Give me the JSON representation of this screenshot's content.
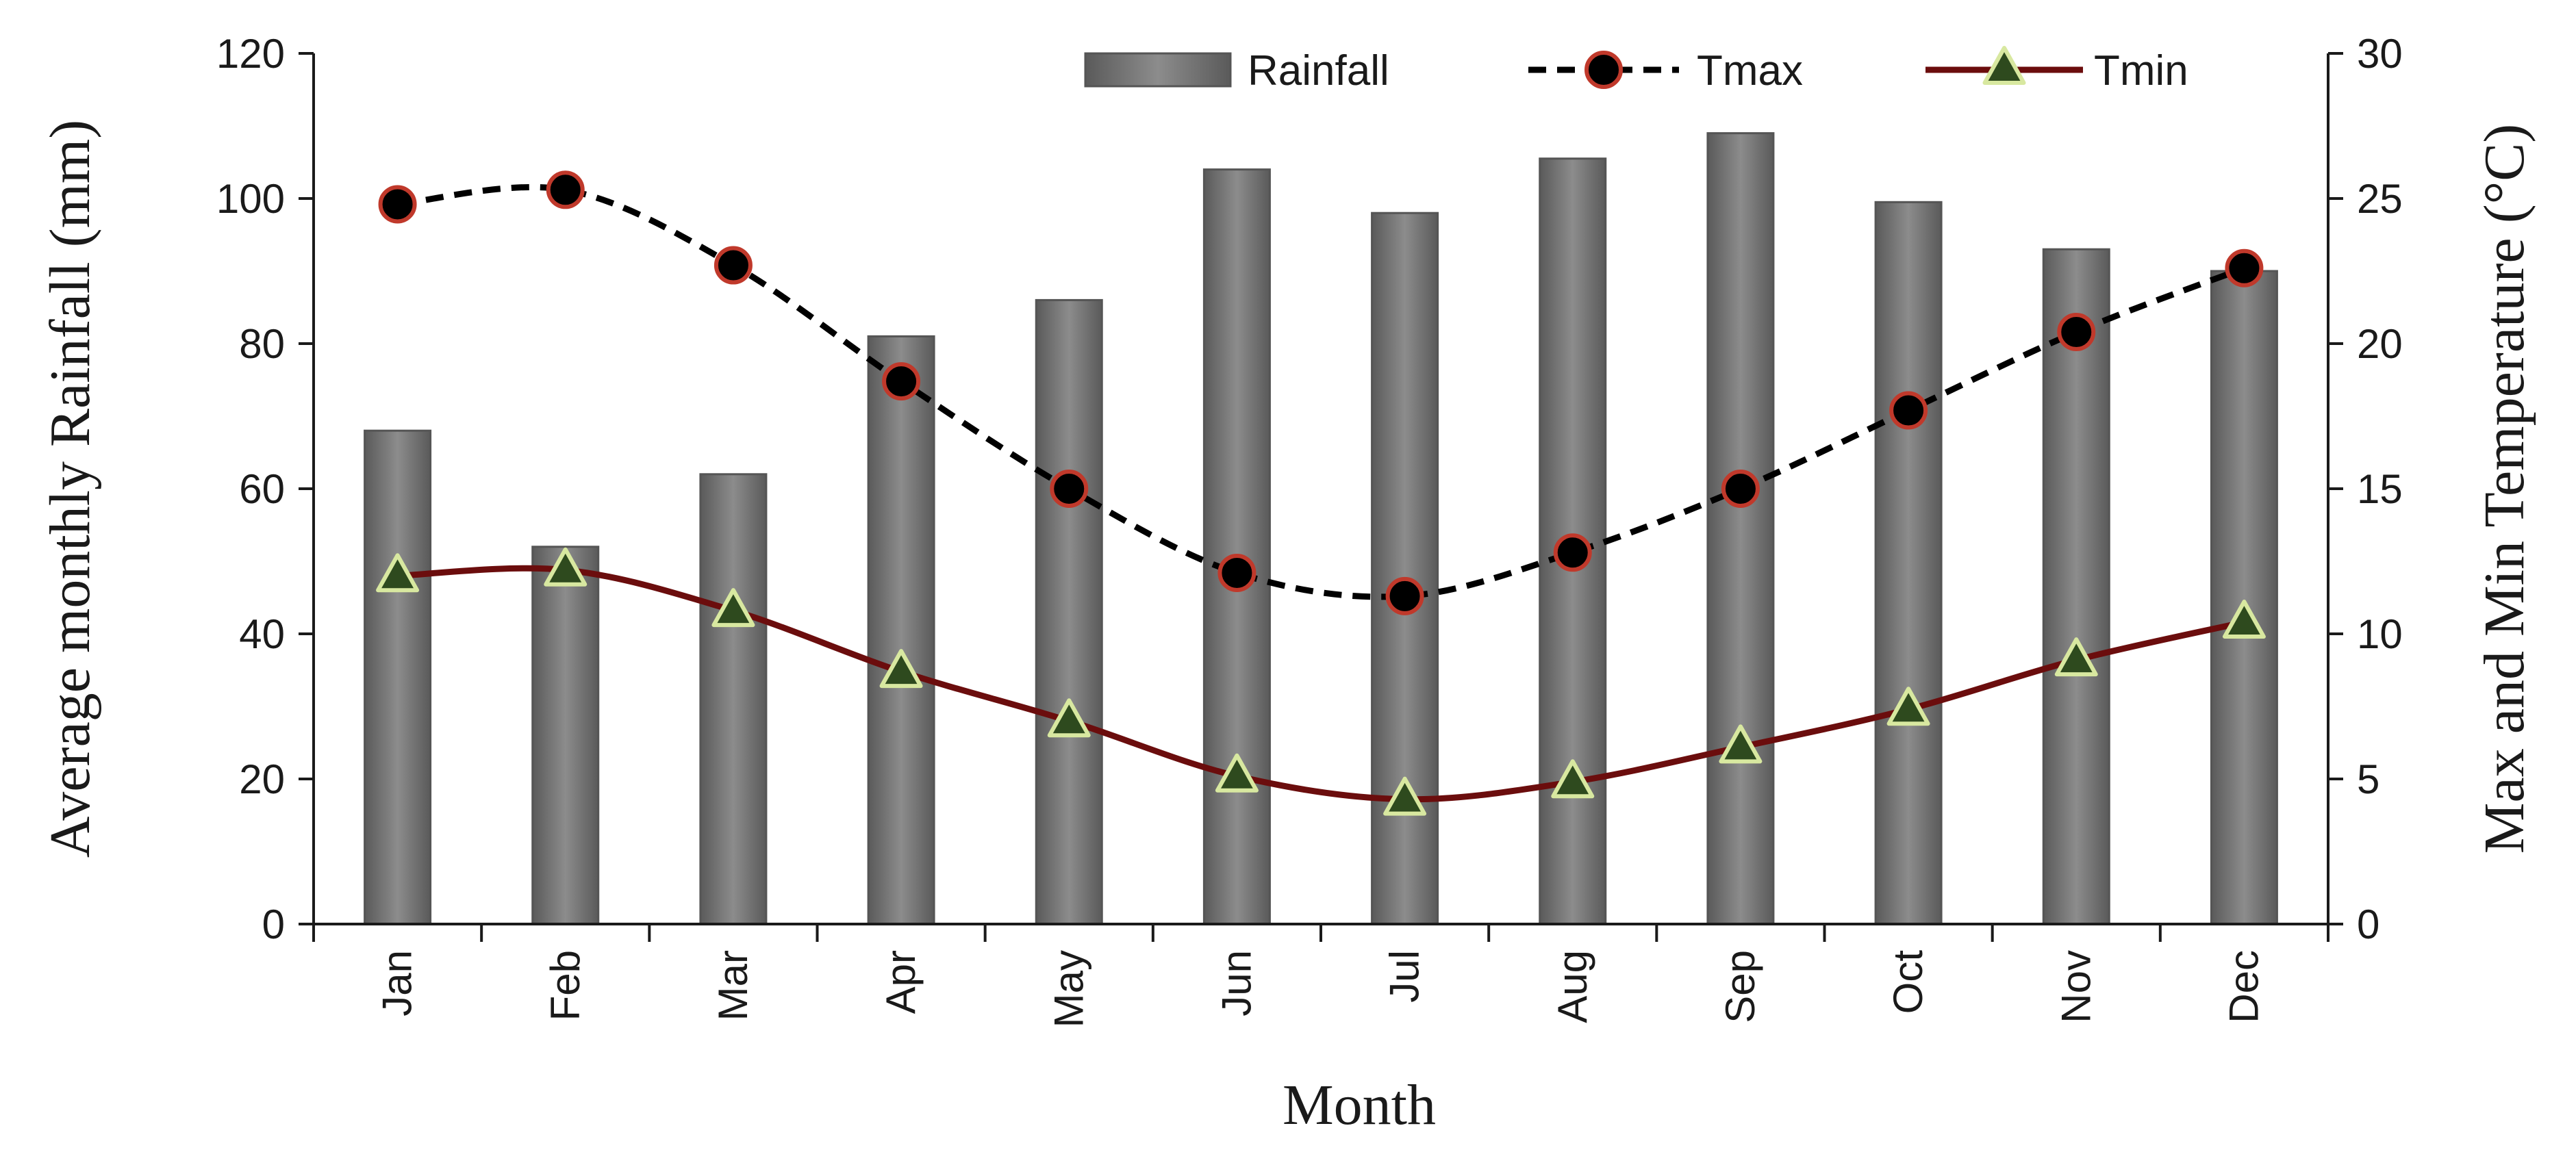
{
  "chart_data": {
    "type": "bar+line",
    "categories": [
      "Jan",
      "Feb",
      "Mar",
      "Apr",
      "May",
      "Jun",
      "Jul",
      "Aug",
      "Sep",
      "Oct",
      "Nov",
      "Dec"
    ],
    "rainfall": {
      "name": "Rainfall",
      "axis": "left",
      "values": [
        68,
        52,
        62,
        81,
        86,
        104,
        98,
        105.5,
        109,
        99.5,
        93,
        90
      ]
    },
    "tmax": {
      "name": "Tmax",
      "axis": "right",
      "values": [
        24.8,
        25.3,
        22.7,
        18.7,
        15.0,
        12.1,
        11.3,
        12.8,
        15.0,
        17.7,
        20.4,
        22.6
      ]
    },
    "tmin": {
      "name": "Tmin",
      "axis": "right",
      "values": [
        12.0,
        12.2,
        10.8,
        8.7,
        7.0,
        5.1,
        4.3,
        4.9,
        6.1,
        7.4,
        9.1,
        10.4
      ]
    },
    "left_axis": {
      "label": "Average monthly Rainfall (mm)",
      "min": 0,
      "max": 120,
      "ticks": [
        "0",
        "20",
        "40",
        "60",
        "80",
        "100",
        "120"
      ]
    },
    "right_axis": {
      "label": "Max and Min Temperature (°C)",
      "min": 0,
      "max": 30,
      "ticks": [
        "0",
        "5",
        "10",
        "15",
        "20",
        "25",
        "30"
      ]
    },
    "xlabel": "Month",
    "legend_position": "top-right",
    "grid": false
  },
  "colors": {
    "bar_fill": "#808080",
    "bar_stroke": "#555555",
    "tmax_line": "#000000",
    "tmax_marker": "#000000",
    "tmax_marker_edge": "#c0392b",
    "tmin_line": "#6b0d0d",
    "tmin_marker": "#2e4a1e",
    "tmin_marker_edge": "#d8e8a0",
    "axis": "#1a1a1a"
  }
}
